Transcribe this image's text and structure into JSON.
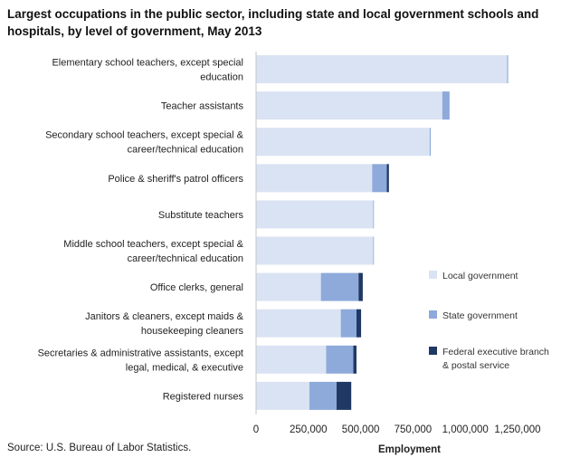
{
  "chart_data": {
    "type": "bar",
    "orientation": "horizontal",
    "stacked": true,
    "title": "Largest occupations in the public sector, including state and local government schools and hospitals, by level of government, May 2013",
    "xlabel": "Employment",
    "ylabel": "",
    "xlim": [
      0,
      1250000
    ],
    "xticks": [
      0,
      250000,
      500000,
      750000,
      1000000,
      1250000
    ],
    "xtick_labels": [
      "0",
      "250,000",
      "500,000",
      "750,000",
      "1,000,000",
      "1,250,000"
    ],
    "grid": false,
    "legend_position": "right",
    "categories": [
      [
        "Elementary school teachers, except special",
        "education"
      ],
      [
        "Teacher assistants"
      ],
      [
        "Secondary school teachers, except special &",
        "career/technical education"
      ],
      [
        "Police & sheriff's patrol officers"
      ],
      [
        "Substitute teachers"
      ],
      [
        "Middle school teachers, except special &",
        "career/technical education"
      ],
      [
        "Office clerks, general"
      ],
      [
        "Janitors & cleaners, except maids &",
        "housekeeping cleaners"
      ],
      [
        "Secretaries & administrative assistants, except",
        "legal, medical, & executive"
      ],
      [
        "Registered nurses"
      ]
    ],
    "series": [
      {
        "name": [
          "Local government"
        ],
        "color": "#dae3f3",
        "values": [
          1200000,
          890000,
          830000,
          555000,
          560000,
          560000,
          310000,
          405000,
          335000,
          255000
        ]
      },
      {
        "name": [
          "State government"
        ],
        "color": "#8eaadb",
        "values": [
          5000,
          35000,
          5000,
          70000,
          3000,
          3000,
          180000,
          75000,
          130000,
          130000
        ]
      },
      {
        "name": [
          "Federal executive branch",
          "& postal service"
        ],
        "color": "#1f3864",
        "values": [
          0,
          0,
          0,
          10000,
          0,
          0,
          20000,
          22000,
          15000,
          70000
        ]
      }
    ]
  },
  "source": "Source: U.S. Bureau of Labor Statistics."
}
